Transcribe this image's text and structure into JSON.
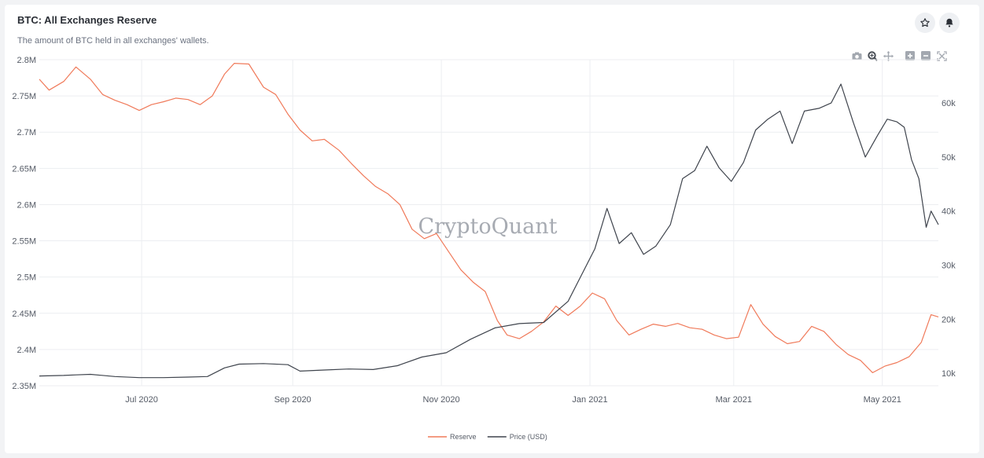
{
  "header": {
    "title": "BTC: All Exchanges Reserve",
    "subtitle": "The amount of BTC held in all exchanges' wallets."
  },
  "icons": {
    "star": "star-icon",
    "bell": "bell-icon",
    "modebar": [
      "camera-icon",
      "zoom-icon",
      "pan-icon",
      "zoom-in-icon",
      "zoom-out-icon",
      "autoscale-icon"
    ]
  },
  "watermark": "CryptoQuant",
  "colors": {
    "reserve": "#f07a5a",
    "price": "#3f444d"
  },
  "chart_data": {
    "type": "line",
    "x_range": [
      "2020-05-20",
      "2021-05-24"
    ],
    "x_ticks": [
      {
        "date": "2020-07-01",
        "label": "Jul 2020"
      },
      {
        "date": "2020-09-01",
        "label": "Sep 2020"
      },
      {
        "date": "2020-11-01",
        "label": "Nov 2020"
      },
      {
        "date": "2021-01-01",
        "label": "Jan 2021"
      },
      {
        "date": "2021-03-01",
        "label": "Mar 2021"
      },
      {
        "date": "2021-05-01",
        "label": "May 2021"
      }
    ],
    "y_left": {
      "range": [
        2350000,
        2800000
      ],
      "ticks": [
        {
          "value": 2350000,
          "label": "2.35M"
        },
        {
          "value": 2400000,
          "label": "2.4M"
        },
        {
          "value": 2450000,
          "label": "2.45M"
        },
        {
          "value": 2500000,
          "label": "2.5M"
        },
        {
          "value": 2550000,
          "label": "2.55M"
        },
        {
          "value": 2600000,
          "label": "2.6M"
        },
        {
          "value": 2650000,
          "label": "2.65M"
        },
        {
          "value": 2700000,
          "label": "2.7M"
        },
        {
          "value": 2750000,
          "label": "2.75M"
        },
        {
          "value": 2800000,
          "label": "2.8M"
        }
      ]
    },
    "y_right": {
      "range": [
        7700,
        68000
      ],
      "ticks": [
        {
          "value": 10000,
          "label": "10k"
        },
        {
          "value": 20000,
          "label": "20k"
        },
        {
          "value": 30000,
          "label": "30k"
        },
        {
          "value": 40000,
          "label": "40k"
        },
        {
          "value": 50000,
          "label": "50k"
        },
        {
          "value": 60000,
          "label": "60k"
        }
      ]
    },
    "grid": true,
    "legend_position": "bottom-center",
    "series": [
      {
        "name": "Reserve",
        "axis": "left",
        "points": [
          [
            "2020-05-20",
            2773000
          ],
          [
            "2020-05-24",
            2758000
          ],
          [
            "2020-05-30",
            2770000
          ],
          [
            "2020-06-04",
            2790000
          ],
          [
            "2020-06-10",
            2773000
          ],
          [
            "2020-06-15",
            2752000
          ],
          [
            "2020-06-20",
            2744000
          ],
          [
            "2020-06-25",
            2738000
          ],
          [
            "2020-06-30",
            2730000
          ],
          [
            "2020-07-05",
            2738000
          ],
          [
            "2020-07-10",
            2742000
          ],
          [
            "2020-07-15",
            2747000
          ],
          [
            "2020-07-20",
            2745000
          ],
          [
            "2020-07-25",
            2738000
          ],
          [
            "2020-07-30",
            2750000
          ],
          [
            "2020-08-04",
            2780000
          ],
          [
            "2020-08-08",
            2795000
          ],
          [
            "2020-08-14",
            2794000
          ],
          [
            "2020-08-20",
            2762000
          ],
          [
            "2020-08-25",
            2752000
          ],
          [
            "2020-08-30",
            2725000
          ],
          [
            "2020-09-04",
            2703000
          ],
          [
            "2020-09-09",
            2688000
          ],
          [
            "2020-09-14",
            2690000
          ],
          [
            "2020-09-20",
            2675000
          ],
          [
            "2020-09-25",
            2657000
          ],
          [
            "2020-09-30",
            2640000
          ],
          [
            "2020-10-05",
            2625000
          ],
          [
            "2020-10-10",
            2615000
          ],
          [
            "2020-10-15",
            2600000
          ],
          [
            "2020-10-20",
            2566000
          ],
          [
            "2020-10-25",
            2553000
          ],
          [
            "2020-10-30",
            2560000
          ],
          [
            "2020-11-04",
            2535000
          ],
          [
            "2020-11-09",
            2510000
          ],
          [
            "2020-11-14",
            2493000
          ],
          [
            "2020-11-19",
            2480000
          ],
          [
            "2020-11-24",
            2440000
          ],
          [
            "2020-11-28",
            2420000
          ],
          [
            "2020-12-03",
            2415000
          ],
          [
            "2020-12-08",
            2425000
          ],
          [
            "2020-12-13",
            2438000
          ],
          [
            "2020-12-18",
            2460000
          ],
          [
            "2020-12-23",
            2447000
          ],
          [
            "2020-12-28",
            2460000
          ],
          [
            "2021-01-02",
            2478000
          ],
          [
            "2021-01-07",
            2470000
          ],
          [
            "2021-01-12",
            2440000
          ],
          [
            "2021-01-17",
            2420000
          ],
          [
            "2021-01-22",
            2428000
          ],
          [
            "2021-01-27",
            2435000
          ],
          [
            "2021-02-01",
            2432000
          ],
          [
            "2021-02-06",
            2436000
          ],
          [
            "2021-02-11",
            2430000
          ],
          [
            "2021-02-16",
            2428000
          ],
          [
            "2021-02-21",
            2420000
          ],
          [
            "2021-02-26",
            2415000
          ],
          [
            "2021-03-03",
            2417000
          ],
          [
            "2021-03-08",
            2462000
          ],
          [
            "2021-03-13",
            2435000
          ],
          [
            "2021-03-18",
            2418000
          ],
          [
            "2021-03-23",
            2408000
          ],
          [
            "2021-03-28",
            2411000
          ],
          [
            "2021-04-02",
            2432000
          ],
          [
            "2021-04-07",
            2425000
          ],
          [
            "2021-04-12",
            2407000
          ],
          [
            "2021-04-17",
            2393000
          ],
          [
            "2021-04-22",
            2385000
          ],
          [
            "2021-04-27",
            2368000
          ],
          [
            "2021-05-02",
            2377000
          ],
          [
            "2021-05-07",
            2382000
          ],
          [
            "2021-05-12",
            2390000
          ],
          [
            "2021-05-17",
            2410000
          ],
          [
            "2021-05-21",
            2448000
          ],
          [
            "2021-05-24",
            2445000
          ]
        ]
      },
      {
        "name": "Price (USD)",
        "axis": "right",
        "points": [
          [
            "2020-05-20",
            9500
          ],
          [
            "2020-05-30",
            9600
          ],
          [
            "2020-06-04",
            9700
          ],
          [
            "2020-06-10",
            9800
          ],
          [
            "2020-06-20",
            9400
          ],
          [
            "2020-06-30",
            9200
          ],
          [
            "2020-07-10",
            9200
          ],
          [
            "2020-07-20",
            9300
          ],
          [
            "2020-07-28",
            9400
          ],
          [
            "2020-08-04",
            11000
          ],
          [
            "2020-08-10",
            11700
          ],
          [
            "2020-08-20",
            11800
          ],
          [
            "2020-08-30",
            11600
          ],
          [
            "2020-09-04",
            10400
          ],
          [
            "2020-09-14",
            10600
          ],
          [
            "2020-09-24",
            10800
          ],
          [
            "2020-10-04",
            10700
          ],
          [
            "2020-10-14",
            11400
          ],
          [
            "2020-10-24",
            13000
          ],
          [
            "2020-11-03",
            13800
          ],
          [
            "2020-11-13",
            16300
          ],
          [
            "2020-11-23",
            18400
          ],
          [
            "2020-12-03",
            19200
          ],
          [
            "2020-12-13",
            19400
          ],
          [
            "2020-12-23",
            23300
          ],
          [
            "2021-01-03",
            33000
          ],
          [
            "2021-01-08",
            40500
          ],
          [
            "2021-01-13",
            34000
          ],
          [
            "2021-01-18",
            36000
          ],
          [
            "2021-01-23",
            32000
          ],
          [
            "2021-01-28",
            33500
          ],
          [
            "2021-02-03",
            37500
          ],
          [
            "2021-02-08",
            46000
          ],
          [
            "2021-02-13",
            47500
          ],
          [
            "2021-02-18",
            52000
          ],
          [
            "2021-02-23",
            48000
          ],
          [
            "2021-02-28",
            45500
          ],
          [
            "2021-03-05",
            49000
          ],
          [
            "2021-03-10",
            55000
          ],
          [
            "2021-03-15",
            57000
          ],
          [
            "2021-03-20",
            58500
          ],
          [
            "2021-03-25",
            52500
          ],
          [
            "2021-03-30",
            58500
          ],
          [
            "2021-04-05",
            59000
          ],
          [
            "2021-04-10",
            60000
          ],
          [
            "2021-04-14",
            63500
          ],
          [
            "2021-04-19",
            56500
          ],
          [
            "2021-04-24",
            50000
          ],
          [
            "2021-04-29",
            54000
          ],
          [
            "2021-05-03",
            57000
          ],
          [
            "2021-05-07",
            56500
          ],
          [
            "2021-05-10",
            55500
          ],
          [
            "2021-05-13",
            49500
          ],
          [
            "2021-05-16",
            46000
          ],
          [
            "2021-05-19",
            37000
          ],
          [
            "2021-05-21",
            40000
          ],
          [
            "2021-05-24",
            37500
          ]
        ]
      }
    ]
  }
}
